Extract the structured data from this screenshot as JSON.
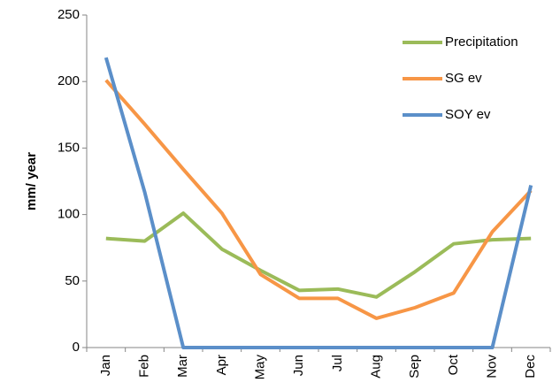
{
  "chart_data": {
    "type": "line",
    "y_label": "mm/ year",
    "categories": [
      "Jan",
      "Feb",
      "Mar",
      "Apr",
      "May",
      "Jun",
      "Jul",
      "Aug",
      "Sep",
      "Oct",
      "Nov",
      "Dec"
    ],
    "series": [
      {
        "name": "Precipitation",
        "color": "#9bbb59",
        "values": [
          82,
          80,
          101,
          74,
          58,
          43,
          44,
          38,
          57,
          78,
          81,
          82
        ]
      },
      {
        "name": "SG ev",
        "color": "#f79646",
        "values": [
          201,
          168,
          134,
          101,
          55,
          37,
          37,
          22,
          30,
          41,
          87,
          118
        ]
      },
      {
        "name": "SOY ev",
        "color": "#5b8fc9",
        "values": [
          218,
          117,
          0,
          0,
          0,
          0,
          0,
          0,
          0,
          0,
          0,
          122
        ]
      }
    ],
    "ylim": [
      0,
      250
    ],
    "yticks": [
      0,
      50,
      100,
      150,
      200,
      250
    ],
    "legend": "upper right"
  }
}
